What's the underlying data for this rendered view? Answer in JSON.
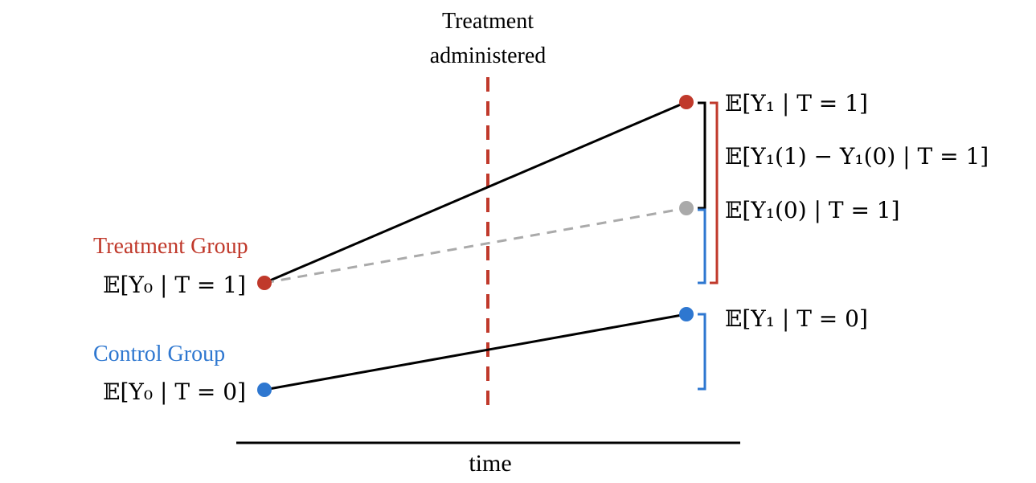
{
  "treatment_marker": {
    "label_line1": "Treatment",
    "label_line2": "administered"
  },
  "axis": {
    "label": "time"
  },
  "groups": {
    "treatment": {
      "label": "Treatment Group",
      "start_expr": "𝔼[Y₀ | T = 1]",
      "color": "#c0392b"
    },
    "control": {
      "label": "Control Group",
      "start_expr": "𝔼[Y₀ | T = 0]",
      "color": "#2e77d0"
    }
  },
  "end_labels": {
    "treated_observed": "𝔼[Y₁ | T = 1]",
    "effect": "𝔼[Y₁(1) − Y₁(0) | T = 1]",
    "counterfactual": "𝔼[Y₁(0) | T = 1]",
    "control_observed": "𝔼[Y₁ | T = 0]"
  },
  "colors": {
    "line": "#000000",
    "counterfactual": "#aaaaaa",
    "dashed_marker": "#c0392b",
    "red_bracket": "#c0392b",
    "blue_bracket": "#2e77d0"
  }
}
